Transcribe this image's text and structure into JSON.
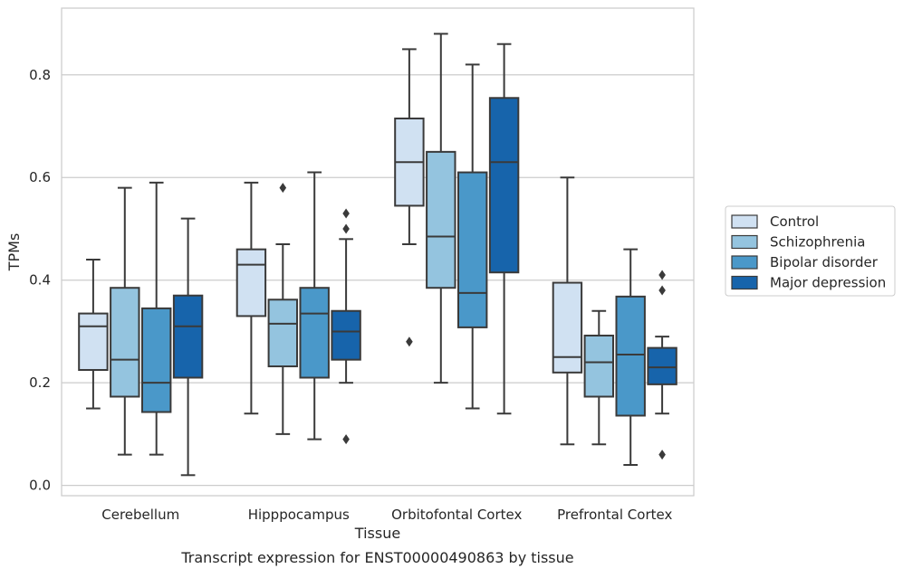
{
  "chart_data": {
    "type": "box",
    "caption": "Transcript expression for ENST00000490863 by tissue",
    "xlabel": "Tissue",
    "ylabel": "TPMs",
    "ylim": [
      -0.02,
      0.93
    ],
    "yticks": [
      0.0,
      0.2,
      0.4,
      0.6,
      0.8
    ],
    "grid": "horizontal",
    "legend_position": "right",
    "categories": [
      "Cerebellum",
      "Hipppocampus",
      "Orbitofontal Cortex",
      "Prefrontal Cortex"
    ],
    "series": [
      {
        "name": "Control",
        "color": "#d0e1f2",
        "boxes": [
          {
            "whislo": 0.15,
            "q1": 0.225,
            "med": 0.31,
            "q3": 0.335,
            "whishi": 0.44,
            "fliers": []
          },
          {
            "whislo": 0.14,
            "q1": 0.33,
            "med": 0.43,
            "q3": 0.46,
            "whishi": 0.59,
            "fliers": []
          },
          {
            "whislo": 0.47,
            "q1": 0.545,
            "med": 0.63,
            "q3": 0.715,
            "whishi": 0.85,
            "fliers": [
              0.28
            ]
          },
          {
            "whislo": 0.08,
            "q1": 0.22,
            "med": 0.25,
            "q3": 0.395,
            "whishi": 0.6,
            "fliers": []
          }
        ]
      },
      {
        "name": "Schizophrenia",
        "color": "#94c4df",
        "boxes": [
          {
            "whislo": 0.06,
            "q1": 0.173,
            "med": 0.245,
            "q3": 0.385,
            "whishi": 0.58,
            "fliers": []
          },
          {
            "whislo": 0.1,
            "q1": 0.232,
            "med": 0.315,
            "q3": 0.362,
            "whishi": 0.47,
            "fliers": [
              0.58
            ]
          },
          {
            "whislo": 0.2,
            "q1": 0.385,
            "med": 0.485,
            "q3": 0.65,
            "whishi": 0.88,
            "fliers": []
          },
          {
            "whislo": 0.08,
            "q1": 0.173,
            "med": 0.24,
            "q3": 0.292,
            "whishi": 0.34,
            "fliers": []
          }
        ]
      },
      {
        "name": "Bipolar disorder",
        "color": "#4a98c9",
        "boxes": [
          {
            "whislo": 0.06,
            "q1": 0.143,
            "med": 0.2,
            "q3": 0.345,
            "whishi": 0.59,
            "fliers": []
          },
          {
            "whislo": 0.09,
            "q1": 0.21,
            "med": 0.335,
            "q3": 0.385,
            "whishi": 0.61,
            "fliers": []
          },
          {
            "whislo": 0.15,
            "q1": 0.308,
            "med": 0.375,
            "q3": 0.61,
            "whishi": 0.82,
            "fliers": []
          },
          {
            "whislo": 0.04,
            "q1": 0.136,
            "med": 0.255,
            "q3": 0.368,
            "whishi": 0.46,
            "fliers": []
          }
        ]
      },
      {
        "name": "Major depression",
        "color": "#1764ab",
        "boxes": [
          {
            "whislo": 0.02,
            "q1": 0.21,
            "med": 0.31,
            "q3": 0.37,
            "whishi": 0.52,
            "fliers": []
          },
          {
            "whislo": 0.2,
            "q1": 0.245,
            "med": 0.3,
            "q3": 0.34,
            "whishi": 0.48,
            "fliers": [
              0.5,
              0.53,
              0.09
            ]
          },
          {
            "whislo": 0.14,
            "q1": 0.415,
            "med": 0.63,
            "q3": 0.755,
            "whishi": 0.86,
            "fliers": []
          },
          {
            "whislo": 0.14,
            "q1": 0.197,
            "med": 0.23,
            "q3": 0.268,
            "whishi": 0.29,
            "fliers": [
              0.38,
              0.41,
              0.06
            ]
          }
        ]
      }
    ]
  }
}
